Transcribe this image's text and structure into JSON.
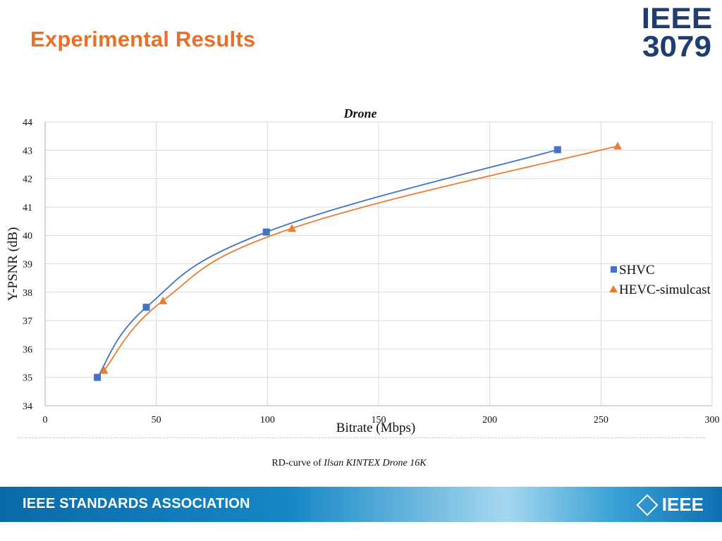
{
  "slide": {
    "title": "Experimental Results",
    "logo_line1": "IEEE",
    "logo_line2": "3079",
    "caption_prefix": "RD-curve of ",
    "caption_italic": "Ilsan KINTEX Drone 16K"
  },
  "footer": {
    "org": "IEEE STANDARDS ASSOCIATION",
    "brand": "IEEE"
  },
  "colors": {
    "title": "#e8702a",
    "shvc": "#4472c4",
    "hevc": "#ed7d31"
  },
  "chart_data": {
    "type": "line",
    "title": "Drone",
    "xlabel": "Bitrate (Mbps)",
    "ylabel": "Y-PSNR (dB)",
    "xlim": [
      0,
      300
    ],
    "ylim": [
      34,
      44
    ],
    "xticks": [
      "0",
      "50",
      "100",
      "150",
      "200",
      "250",
      "300"
    ],
    "yticks": [
      "34",
      "35",
      "36",
      "37",
      "38",
      "39",
      "40",
      "41",
      "42",
      "43",
      "44"
    ],
    "grid": true,
    "legend_position": "right",
    "series": [
      {
        "name": "SHVC",
        "marker": "square",
        "color": "#4472c4",
        "x": [
          23.5,
          45.5,
          99.5,
          230.5
        ],
        "y": [
          35.0,
          37.47,
          40.12,
          43.02
        ]
      },
      {
        "name": "HEVC-simulcast",
        "marker": "triangle",
        "color": "#ed7d31",
        "x": [
          26.5,
          53.0,
          111.0,
          257.5
        ],
        "y": [
          35.25,
          37.7,
          40.25,
          43.15
        ]
      }
    ]
  }
}
